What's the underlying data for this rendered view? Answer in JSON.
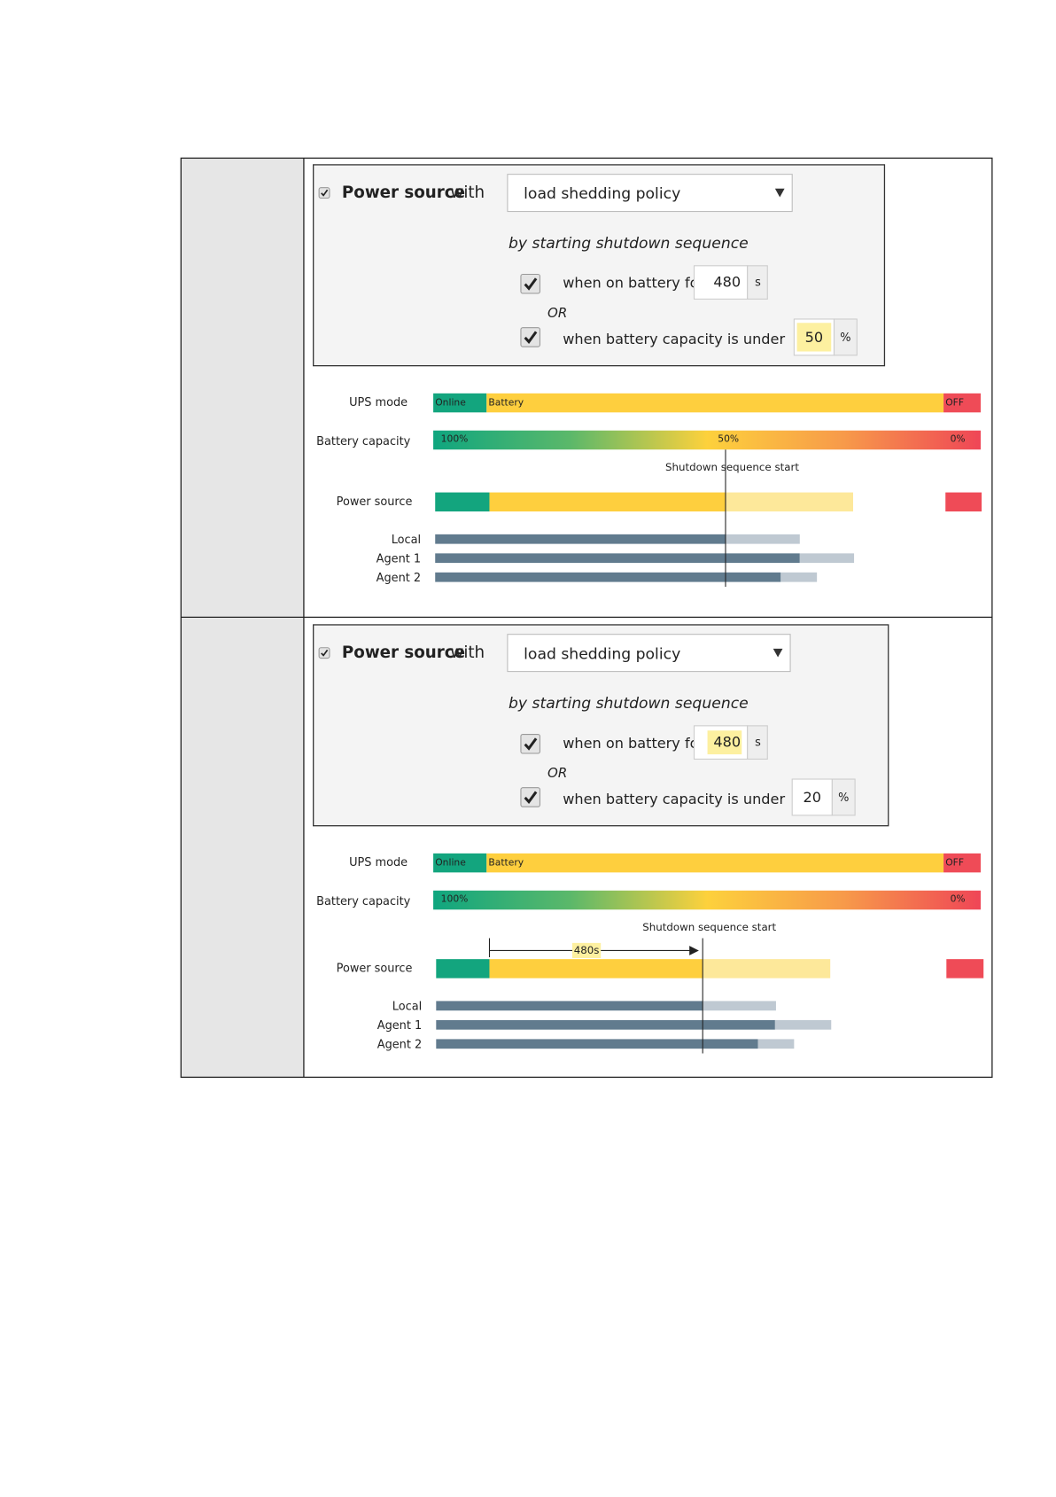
{
  "rows": [
    {
      "settings": {
        "source_label": "Power source",
        "with": "with",
        "policy": "load shedding policy",
        "subtitle": "by starting shutdown sequence",
        "battery_time_label": "when on battery for",
        "battery_time": 480,
        "battery_time_unit": "s",
        "or": "OR",
        "capacity_label": "when battery capacity is under",
        "capacity": 50,
        "capacity_unit": "%"
      },
      "timeline": {
        "ups_mode_label": "UPS mode",
        "ups_states": [
          "Online",
          "Battery",
          "OFF"
        ],
        "capacity_label": "Battery capacity",
        "capacity_marks": [
          "100%",
          "50%",
          "0%"
        ],
        "shutdown_label": "Shutdown sequence start",
        "power_source_label": "Power source",
        "agents": [
          "Local",
          "Agent 1",
          "Agent 2"
        ]
      }
    },
    {
      "settings": {
        "source_label": "Power source",
        "with": "with",
        "policy": "load shedding policy",
        "subtitle": "by starting shutdown sequence",
        "battery_time_label": "when on battery for",
        "battery_time": 480,
        "battery_time_unit": "s",
        "or": "OR",
        "capacity_label": "when battery capacity is under",
        "capacity": 20,
        "capacity_unit": "%"
      },
      "timeline": {
        "ups_mode_label": "UPS mode",
        "ups_states": [
          "Online",
          "Battery",
          "OFF"
        ],
        "capacity_label": "Battery capacity",
        "capacity_marks": [
          "100%",
          "0%"
        ],
        "shutdown_label": "Shutdown sequence start",
        "delay_label": "480s",
        "power_source_label": "Power source",
        "agents": [
          "Local",
          "Agent 1",
          "Agent 2"
        ]
      }
    }
  ]
}
